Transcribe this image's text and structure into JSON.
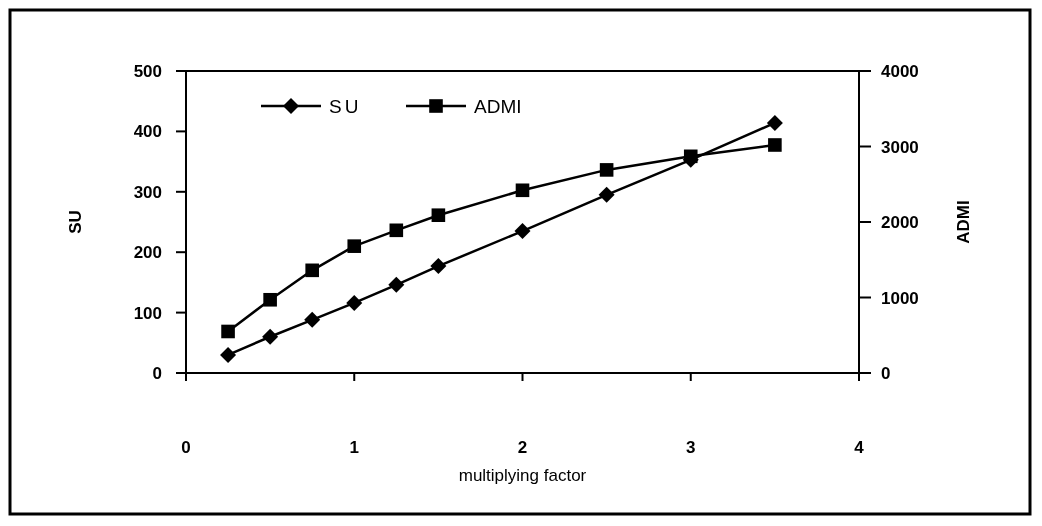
{
  "chart_data": {
    "type": "line",
    "xlabel": "multiplying factor",
    "ylabel": "SU",
    "y2label": "ADMI",
    "x": [
      0.25,
      0.5,
      0.75,
      1,
      1.25,
      1.5,
      2,
      2.5,
      3,
      3.5
    ],
    "series": [
      {
        "name": "SU",
        "color": "#000000",
        "marker": "diamond",
        "values": [
          30,
          60,
          88,
          116,
          146,
          177,
          235,
          295,
          353,
          414
        ]
      },
      {
        "name": "ADMI",
        "color": "#000000",
        "marker": "square",
        "axis": "y2",
        "values": [
          550,
          970,
          1360,
          1680,
          1890,
          2090,
          2420,
          2690,
          2870,
          3020
        ]
      }
    ],
    "xlim": [
      0,
      4
    ],
    "xticks": [
      0,
      1,
      2,
      3,
      4
    ],
    "ylim": [
      0,
      500
    ],
    "yticks": [
      0,
      100,
      200,
      300,
      400,
      500
    ],
    "y2lim": [
      0,
      4000
    ],
    "y2ticks": [
      0,
      1000,
      2000,
      3000,
      4000
    ],
    "legend": "top left",
    "grid": false,
    "line_style": "solid"
  }
}
